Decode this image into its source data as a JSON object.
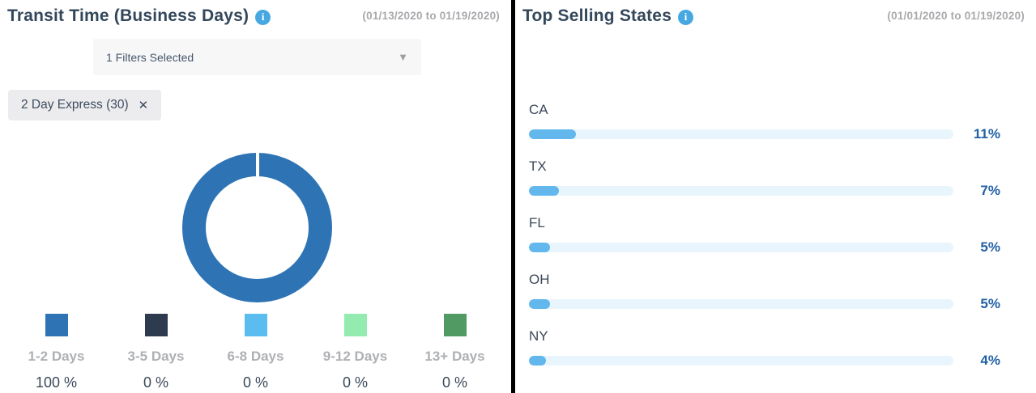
{
  "left_panel": {
    "title": "Transit Time (Business Days)",
    "info_icon_glyph": "i",
    "date_range": "(01/13/2020 to 01/19/2020)",
    "filter_dropdown": {
      "value": "1 Filters Selected",
      "chevron_glyph": "▼"
    },
    "filter_chip": {
      "label": "2 Day Express (30)",
      "close_glyph": "✕"
    },
    "chart_data": {
      "type": "pie",
      "subtype": "donut",
      "title": "Transit Time (Business Days)",
      "categories": [
        "1-2 Days",
        "3-5 Days",
        "6-8 Days",
        "9-12 Days",
        "13+ Days"
      ],
      "values": [
        100,
        0,
        0,
        0,
        0
      ],
      "value_labels": [
        "100 %",
        "0 %",
        "0 %",
        "0 %",
        "0 %"
      ],
      "colors": [
        "#2e74b5",
        "#2e3b4e",
        "#5bbcef",
        "#93ebb0",
        "#529a64"
      ],
      "legend_position": "bottom"
    }
  },
  "right_panel": {
    "title": "Top Selling States",
    "info_icon_glyph": "i",
    "date_range": "(01/01/2020 to 01/19/2020)",
    "chart_data": {
      "type": "bar",
      "orientation": "horizontal",
      "title": "Top Selling States",
      "categories": [
        "CA",
        "TX",
        "FL",
        "OH",
        "NY"
      ],
      "values": [
        11,
        7,
        5,
        5,
        4
      ],
      "value_labels": [
        "11%",
        "7%",
        "5%",
        "5%",
        "4%"
      ],
      "xlim": [
        0,
        100
      ],
      "bar_color": "#62b7ec",
      "track_color": "#e9f5fc",
      "grid": false,
      "legend": false
    }
  },
  "colors": {
    "title_text": "#33475b",
    "date_text": "#a7a9ac",
    "info_icon_bg": "#47a8e1",
    "donut_ring": "#2e74b5",
    "bar_fill": "#62b7ec",
    "bar_track": "#e9f5fc",
    "bar_value_text": "#2160a5",
    "divider": "#000000"
  }
}
